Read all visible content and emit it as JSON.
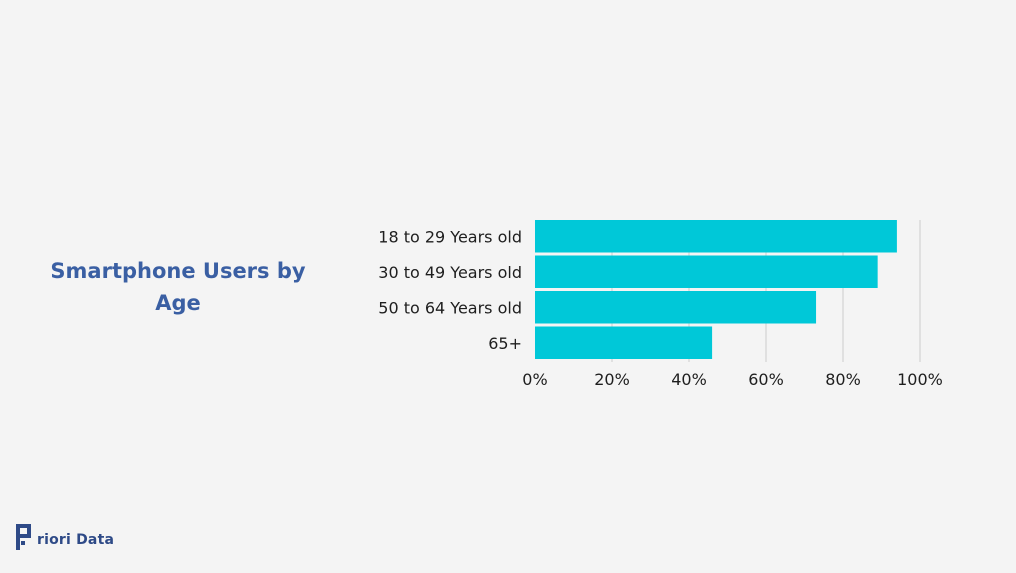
{
  "title": "Smartphone Users by Age",
  "brand": {
    "logo_text": "riori Data",
    "color": "#2e4a87"
  },
  "colors": {
    "bar": "#00c8d8",
    "grid": "#cccccc",
    "title": "#3a5fa3"
  },
  "chart_data": {
    "type": "bar",
    "orientation": "horizontal",
    "title": "Smartphone Users by Age",
    "categories": [
      "18 to 29 Years old",
      "30 to 49 Years old",
      "50 to 64 Years old",
      "65+"
    ],
    "values": [
      94,
      89,
      73,
      46
    ],
    "xlim": [
      0,
      100
    ],
    "ticks": [
      0,
      20,
      40,
      60,
      80,
      100
    ],
    "tick_labels": [
      "0%",
      "20%",
      "40%",
      "60%",
      "80%",
      "100%"
    ],
    "unit": "%",
    "grid": true,
    "legend": "none"
  }
}
